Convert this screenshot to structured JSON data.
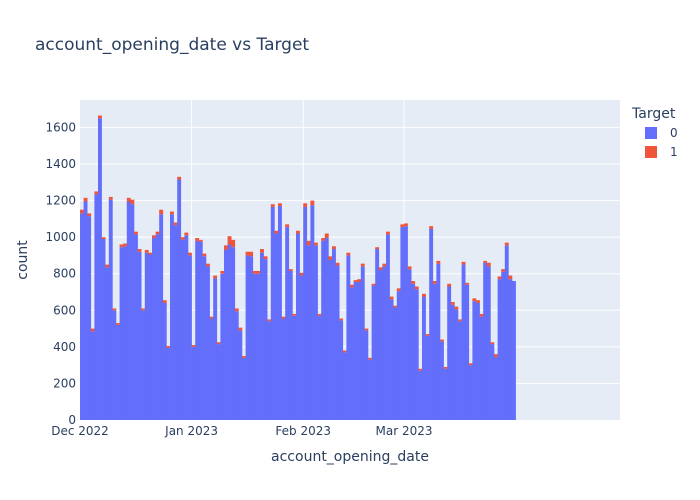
{
  "chart_data": {
    "type": "bar",
    "barmode": "stack",
    "title": "account_opening_date vs Target",
    "xlabel": "account_opening_date",
    "ylabel": "count",
    "x_range": [
      "2022-12-01",
      "2023-04-30"
    ],
    "ylim": [
      0,
      1750
    ],
    "y_ticks": [
      0,
      200,
      400,
      600,
      800,
      1000,
      1200,
      1400,
      1600
    ],
    "x_ticks": [
      {
        "date": "2022-12-01",
        "label": "Dec 2022"
      },
      {
        "date": "2023-01-01",
        "label": "Jan 2023"
      },
      {
        "date": "2023-02-01",
        "label": "Feb 2023"
      },
      {
        "date": "2023-03-01",
        "label": "Mar 2023"
      }
    ],
    "legend": {
      "title": "Target",
      "placement": "top-right"
    },
    "grid": true,
    "start_date": "2022-12-01",
    "series": [
      {
        "name": "0",
        "color": "#636efa",
        "values": [
          1130,
          1195,
          1115,
          485,
          1235,
          1650,
          990,
          835,
          1205,
          600,
          520,
          945,
          950,
          1195,
          1180,
          1015,
          920,
          600,
          915,
          905,
          995,
          1015,
          1125,
          640,
          395,
          1125,
          1065,
          1315,
          985,
          1010,
          900,
          400,
          980,
          975,
          895,
          840,
          555,
          775,
          415,
          800,
          930,
          960,
          945,
          595,
          490,
          340,
          900,
          895,
          800,
          800,
          915,
          880,
          540,
          1165,
          1020,
          1170,
          555,
          1055,
          815,
          570,
          1020,
          790,
          1165,
          955,
          1175,
          955,
          570,
          980,
          995,
          875,
          935,
          845,
          545,
          370,
          900,
          725,
          755,
          755,
          840,
          490,
          330,
          735,
          935,
          820,
          840,
          1015,
          660,
          615,
          705,
          1055,
          1060,
          825,
          745,
          715,
          270,
          675,
          460,
          1045,
          745,
          855,
          430,
          280,
          730,
          630,
          605,
          540,
          850,
          740,
          300,
          650,
          640,
          565,
          860,
          840,
          415,
          345,
          770,
          810,
          955,
          770,
          760
        ],
        "line": true
      },
      {
        "name": "1",
        "color": "#ef553b",
        "values": [
          20,
          20,
          15,
          15,
          15,
          15,
          10,
          15,
          15,
          10,
          10,
          15,
          15,
          20,
          25,
          15,
          15,
          10,
          15,
          10,
          15,
          15,
          25,
          15,
          10,
          15,
          15,
          15,
          15,
          15,
          15,
          10,
          15,
          10,
          15,
          15,
          10,
          15,
          10,
          15,
          25,
          45,
          40,
          15,
          15,
          10,
          20,
          25,
          15,
          15,
          20,
          15,
          10,
          15,
          15,
          15,
          10,
          15,
          10,
          10,
          15,
          15,
          20,
          25,
          25,
          15,
          10,
          15,
          25,
          20,
          15,
          15,
          10,
          10,
          15,
          15,
          10,
          15,
          15,
          10,
          10,
          10,
          10,
          15,
          15,
          15,
          15,
          10,
          15,
          15,
          15,
          15,
          15,
          15,
          10,
          15,
          10,
          15,
          15,
          15,
          10,
          10,
          15,
          15,
          15,
          10,
          15,
          10,
          10,
          15,
          15,
          15,
          10,
          20,
          10,
          15,
          15,
          15,
          15,
          20
        ]
      }
    ]
  }
}
